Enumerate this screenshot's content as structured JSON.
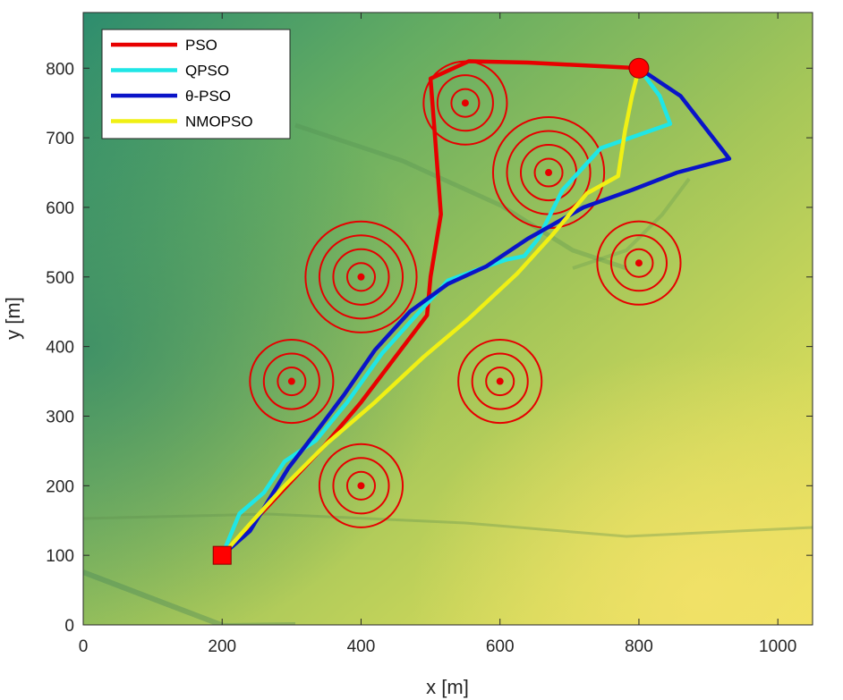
{
  "chart_data": {
    "type": "line",
    "title": "",
    "xlabel": "x [m]",
    "ylabel": "y [m]",
    "xlim": [
      0,
      1050
    ],
    "ylim": [
      0,
      880
    ],
    "xticks": [
      0,
      200,
      400,
      600,
      800,
      1000
    ],
    "yticks": [
      0,
      100,
      200,
      300,
      400,
      500,
      600,
      700,
      800
    ],
    "legend_position": "top-left",
    "background": "terrain elevation map (green to yellow)",
    "start": {
      "x": 200,
      "y": 100,
      "marker": "square",
      "color": "#ff0000"
    },
    "goal": {
      "x": 800,
      "y": 800,
      "marker": "circle",
      "color": "#ff0000"
    },
    "series": [
      {
        "name": "PSO",
        "color": "#e80000",
        "points": [
          [
            200,
            100
          ],
          [
            345,
            255
          ],
          [
            400,
            320
          ],
          [
            495,
            445
          ],
          [
            500,
            500
          ],
          [
            515,
            590
          ],
          [
            505,
            720
          ],
          [
            500,
            785
          ],
          [
            555,
            810
          ],
          [
            640,
            808
          ],
          [
            800,
            800
          ]
        ]
      },
      {
        "name": "QPSO",
        "color": "#1fe6e6",
        "points": [
          [
            200,
            100
          ],
          [
            225,
            160
          ],
          [
            260,
            190
          ],
          [
            290,
            235
          ],
          [
            335,
            265
          ],
          [
            380,
            320
          ],
          [
            430,
            390
          ],
          [
            475,
            440
          ],
          [
            525,
            495
          ],
          [
            580,
            515
          ],
          [
            610,
            525
          ],
          [
            635,
            530
          ],
          [
            655,
            555
          ],
          [
            690,
            625
          ],
          [
            745,
            685
          ],
          [
            845,
            720
          ],
          [
            830,
            760
          ],
          [
            800,
            800
          ]
        ]
      },
      {
        "name": "θ-PSO",
        "color": "#0a14c8",
        "points": [
          [
            200,
            100
          ],
          [
            240,
            135
          ],
          [
            295,
            225
          ],
          [
            345,
            290
          ],
          [
            375,
            330
          ],
          [
            420,
            395
          ],
          [
            470,
            450
          ],
          [
            525,
            490
          ],
          [
            580,
            515
          ],
          [
            640,
            555
          ],
          [
            720,
            600
          ],
          [
            790,
            625
          ],
          [
            855,
            650
          ],
          [
            930,
            670
          ],
          [
            860,
            760
          ],
          [
            800,
            800
          ]
        ]
      },
      {
        "name": "NMOPSO",
        "color": "#f0f014",
        "points": [
          [
            200,
            100
          ],
          [
            240,
            145
          ],
          [
            290,
            200
          ],
          [
            350,
            260
          ],
          [
            420,
            320
          ],
          [
            490,
            385
          ],
          [
            555,
            440
          ],
          [
            625,
            505
          ],
          [
            675,
            560
          ],
          [
            725,
            620
          ],
          [
            770,
            645
          ],
          [
            780,
            710
          ],
          [
            790,
            760
          ],
          [
            800,
            800
          ]
        ]
      }
    ],
    "obstacles": [
      {
        "x": 550,
        "y": 750,
        "radii": [
          20,
          40,
          60
        ]
      },
      {
        "x": 670,
        "y": 650,
        "radii": [
          20,
          40,
          60,
          80
        ]
      },
      {
        "x": 400,
        "y": 500,
        "radii": [
          20,
          40,
          60,
          80
        ]
      },
      {
        "x": 800,
        "y": 520,
        "radii": [
          20,
          40,
          60
        ]
      },
      {
        "x": 300,
        "y": 350,
        "radii": [
          20,
          40,
          60
        ]
      },
      {
        "x": 600,
        "y": 350,
        "radii": [
          20,
          40,
          60
        ]
      },
      {
        "x": 400,
        "y": 200,
        "radii": [
          20,
          40,
          60
        ]
      }
    ]
  }
}
